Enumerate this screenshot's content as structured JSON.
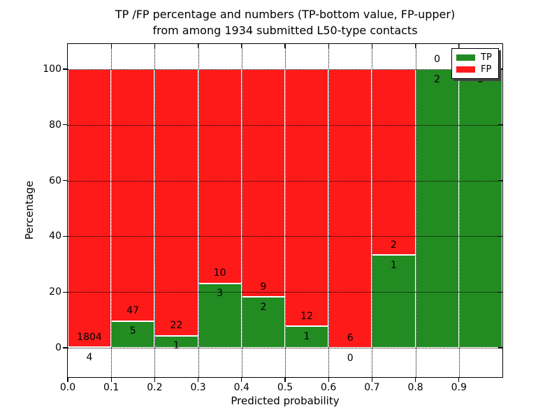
{
  "title": {
    "line1": "TP /FP percentage and numbers (TP-bottom value, FP-upper)",
    "line2": "from among 1934 submitted L50-type contacts"
  },
  "axes": {
    "xlabel": "Predicted probability",
    "ylabel": "Percentage"
  },
  "legend": {
    "position": "upper right",
    "entries": [
      {
        "label": "TP",
        "color": "#228B22"
      },
      {
        "label": "FP",
        "color": "#FF1A1A"
      }
    ]
  },
  "chart_data": {
    "type": "bar",
    "subtype": "stacked-percent-histogram",
    "title": "TP /FP percentage and numbers (TP-bottom value, FP-upper) from among 1934 submitted L50-type contacts",
    "xlabel": "Predicted probability",
    "ylabel": "Percentage",
    "xlim": [
      0.0,
      1.0
    ],
    "ylim": [
      -10.5,
      109.0
    ],
    "xticks": [
      "0.0",
      "0.1",
      "0.2",
      "0.3",
      "0.4",
      "0.5",
      "0.6",
      "0.7",
      "0.8",
      "0.9"
    ],
    "yticks": [
      "0",
      "20",
      "40",
      "60",
      "80",
      "100"
    ],
    "grid": "dotted-black-on-top",
    "bin_edges": [
      0.0,
      0.1,
      0.2,
      0.3,
      0.4,
      0.5,
      0.6,
      0.7,
      0.8,
      0.9,
      1.0
    ],
    "series": [
      {
        "name": "TP",
        "color": "#228B22",
        "values": [
          4,
          5,
          1,
          3,
          2,
          1,
          0,
          1,
          2,
          3
        ]
      },
      {
        "name": "FP",
        "color": "#FF1A1A",
        "values": [
          1804,
          47,
          22,
          10,
          9,
          12,
          6,
          2,
          0,
          0
        ]
      }
    ],
    "total_contacts_shown_in_title": 1934
  }
}
